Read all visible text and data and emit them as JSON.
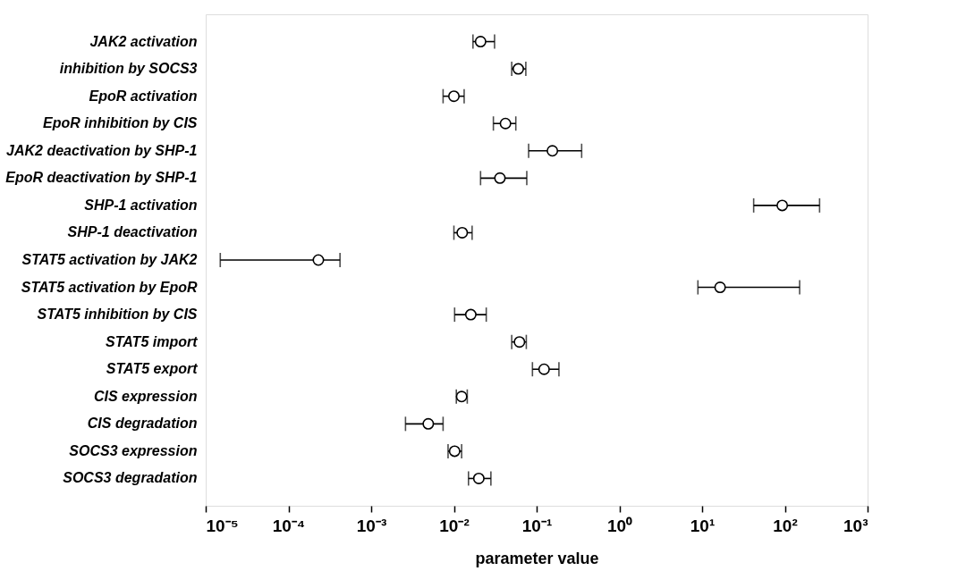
{
  "chart_data": {
    "type": "scatter",
    "orientation": "horizontal",
    "xlabel": "parameter value",
    "log": "x",
    "grid": false,
    "marker": "circle",
    "categories": [
      "JAK2 activation",
      "inhibition by SOCS3",
      "EpoR activation",
      "EpoR inhibition by CIS",
      "JAK2 deactivation by SHP-1",
      "EpoR deactivation by SHP-1",
      "SHP-1 activation",
      "SHP-1 deactivation",
      "STAT5 activation by JAK2",
      "STAT5 activation by EpoR",
      "STAT5 inhibition by CIS",
      "STAT5 import",
      "STAT5 export",
      "CIS expression",
      "CIS degradation",
      "SOCS3 expression",
      "SOCS3 degradation"
    ],
    "series": [
      {
        "color": "#000000",
        "values": [
          0.021,
          0.06,
          0.01,
          0.042,
          0.155,
          0.036,
          93,
          0.0126,
          0.00023,
          16.5,
          0.016,
          0.062,
          0.123,
          0.0124,
          0.0049,
          0.0102,
          0.02
        ],
        "errors": [
          [
            0.017,
            0.031
          ],
          [
            0.05,
            0.074
          ],
          [
            0.0074,
            0.0133
          ],
          [
            0.03,
            0.056
          ],
          [
            0.08,
            0.35
          ],
          [
            0.021,
            0.076
          ],
          [
            42,
            263
          ],
          [
            0.01,
            0.0166
          ],
          [
            1.5e-05,
            0.00042
          ],
          [
            8.9,
            151
          ],
          [
            0.0102,
            0.0246
          ],
          [
            0.05,
            0.075
          ],
          [
            0.089,
            0.186
          ],
          [
            0.0107,
            0.0145
          ],
          [
            0.0026,
            0.0074
          ],
          [
            0.0085,
            0.0124
          ],
          [
            0.015,
            0.028
          ]
        ]
      }
    ],
    "xlim": [
      1e-05,
      1000
    ],
    "xticks": [
      {
        "value": 1e-05,
        "label": "10⁻⁵"
      },
      {
        "value": 0.0001,
        "label": "10⁻⁴"
      },
      {
        "value": 0.001,
        "label": "10⁻³"
      },
      {
        "value": 0.01,
        "label": "10⁻²"
      },
      {
        "value": 0.1,
        "label": "10⁻¹"
      },
      {
        "value": 1,
        "label": "10⁰"
      },
      {
        "value": 10,
        "label": "10¹"
      },
      {
        "value": 100,
        "label": "10²"
      },
      {
        "value": 1000,
        "label": "10³"
      }
    ]
  }
}
